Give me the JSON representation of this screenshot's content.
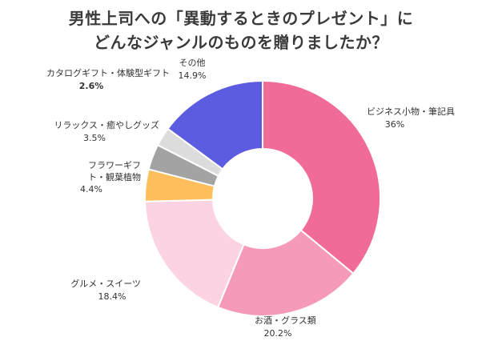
{
  "chart_data": {
    "type": "pie",
    "title": "男性上司への「異動するときのプレゼント」に\nどんなジャンルのものを贈りましたか？",
    "title_lines": [
      "男性上司への「異動するときのプレゼント」に",
      "どんなジャンルのものを贈りましたか？"
    ],
    "donut": true,
    "slices": [
      {
        "label_lines": [
          "ビジネス小物・筆記具"
        ],
        "value": 36,
        "value_label": "36%",
        "color": "#f06b97"
      },
      {
        "label_lines": [
          "お酒・グラス類"
        ],
        "value": 20.2,
        "value_label": "20.2%",
        "color": "#f59bb9"
      },
      {
        "label_lines": [
          "グルメ・スイーツ"
        ],
        "value": 18.4,
        "value_label": "18.4%",
        "color": "#fcd3e2"
      },
      {
        "label_lines": [
          "フラワーギフ",
          "ト・観葉植物"
        ],
        "value": 4.4,
        "value_label": "4.4%",
        "color": "#ffbe5c"
      },
      {
        "label_lines": [
          "リラックス・癒やしグッズ"
        ],
        "value": 3.5,
        "value_label": "3.5%",
        "color": "#a3a3a3"
      },
      {
        "label_lines": [
          "カタログギフト・体験型ギフト"
        ],
        "value": 2.6,
        "value_label": "2.6%",
        "color": "#dcdcdc"
      },
      {
        "label_lines": [
          "その他"
        ],
        "value": 14.9,
        "value_label": "14.9%",
        "color": "#5c5ce0"
      }
    ],
    "legend": "none"
  }
}
